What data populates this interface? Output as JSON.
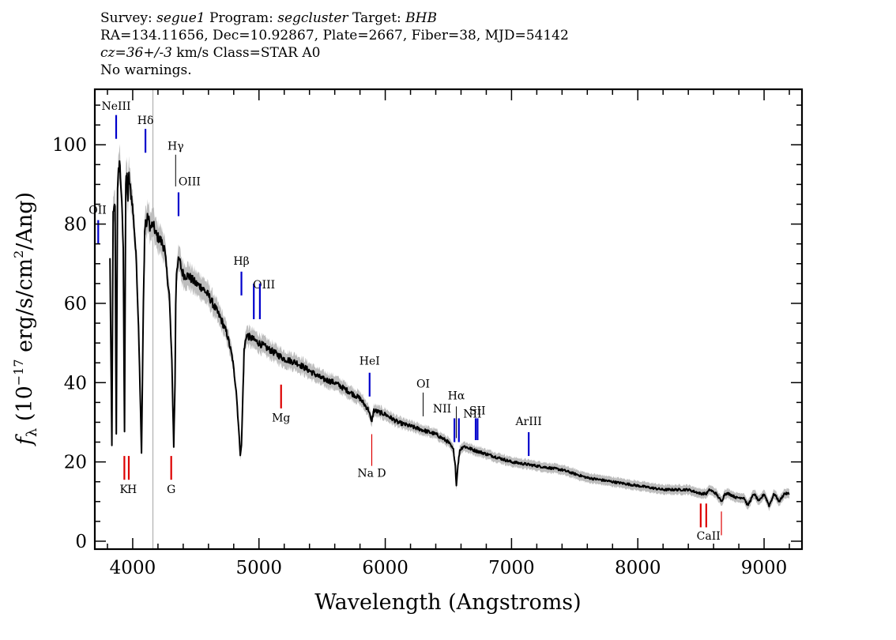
{
  "header": {
    "survey_label": "Survey:",
    "survey": "segue1",
    "program_label": "Program:",
    "program": "segcluster",
    "target_label": "Target:",
    "target": "BHB",
    "line2": "RA=134.11656, Dec=10.92867, Plate=2667, Fiber=38, MJD=54142",
    "cz_label": "cz=36+/-3",
    "cz_rest": "km/s Class=STAR A0",
    "warnings": "No warnings."
  },
  "chart_data": {
    "type": "line",
    "title": "",
    "xlabel": "Wavelength (Angstroms)",
    "ylabel": "f_λ (10^-17 erg/s/cm^2/Ang)",
    "xlim": [
      3700,
      9300
    ],
    "ylim": [
      -2,
      114
    ],
    "x_ticks": [
      4000,
      5000,
      6000,
      7000,
      8000,
      9000
    ],
    "y_ticks": [
      0,
      20,
      40,
      60,
      80,
      100
    ],
    "vertical_marker_x": 4160,
    "colors": {
      "spectrum": "#000000",
      "error_band": "#bdbdbd",
      "emission": "#0000cc",
      "absorption": "#dd0000",
      "marker": "#b0b0b0"
    },
    "spectrum": {
      "x": [
        3820,
        3835,
        3845,
        3860,
        3870,
        3880,
        3888,
        3896,
        3910,
        3925,
        3935,
        3945,
        3955,
        3962,
        3970,
        3980,
        3995,
        4010,
        4030,
        4050,
        4070,
        4085,
        4095,
        4102,
        4110,
        4120,
        4140,
        4160,
        4190,
        4220,
        4250,
        4270,
        4290,
        4310,
        4325,
        4335,
        4341,
        4347,
        4355,
        4370,
        4390,
        4410,
        4440,
        4470,
        4500,
        4550,
        4600,
        4650,
        4700,
        4750,
        4790,
        4820,
        4840,
        4852,
        4861,
        4870,
        4882,
        4900,
        4950,
        5000,
        5050,
        5100,
        5200,
        5300,
        5400,
        5500,
        5600,
        5700,
        5800,
        5870,
        5890,
        5910,
        6000,
        6100,
        6200,
        6300,
        6400,
        6500,
        6540,
        6555,
        6563,
        6572,
        6590,
        6620,
        6700,
        6800,
        6900,
        7000,
        7200,
        7400,
        7600,
        7800,
        8000,
        8200,
        8400,
        8498,
        8520,
        8542,
        8570,
        8620,
        8662,
        8690,
        8720,
        8780,
        8840,
        8870,
        8920,
        8960,
        9000,
        9040,
        9080,
        9120,
        9160,
        9200
      ],
      "flux": [
        71,
        24,
        82,
        85,
        27,
        88,
        93,
        96,
        88,
        74,
        28,
        90,
        92,
        86,
        92,
        89,
        86,
        80,
        70,
        50,
        22,
        60,
        78,
        81,
        80,
        82,
        79,
        80,
        77,
        76,
        74,
        68,
        62,
        45,
        24,
        40,
        60,
        68,
        70,
        71,
        68,
        67,
        67,
        66,
        65,
        64,
        62,
        59,
        56,
        52,
        46,
        38,
        28,
        22,
        24,
        34,
        48,
        52,
        51,
        50,
        49,
        48,
        46,
        45,
        43,
        41,
        40,
        38,
        36,
        33,
        30,
        33,
        32,
        30,
        29,
        28,
        27,
        25,
        23,
        19,
        14,
        18,
        23,
        24,
        23,
        22,
        21,
        20,
        19,
        18,
        16,
        15,
        14,
        13,
        13,
        12,
        12,
        12,
        13,
        12,
        10,
        12,
        12,
        11,
        11,
        9,
        12,
        10,
        12,
        9,
        12,
        10,
        12,
        12,
        11,
        12
      ]
    },
    "line_labels": [
      {
        "label": "NeIII",
        "x": 3869,
        "y_top": 107.5,
        "y_bot": 101.5,
        "color": "emission",
        "lx": 3869,
        "ly": 108.8,
        "anchor": "middle"
      },
      {
        "label": "OII",
        "x": 3727,
        "y_top": 81.0,
        "y_bot": 75.0,
        "color": "emission",
        "lx": 3722,
        "ly": 82.6,
        "anchor": "middle"
      },
      {
        "label": "Hδ",
        "x": 4101,
        "y_top": 104.0,
        "y_bot": 98.0,
        "color": "emission",
        "lx": 4101,
        "ly": 105.2,
        "anchor": "middle"
      },
      {
        "label": "Hγ",
        "x": 4340,
        "y_top": 97.5,
        "y_bot": 89.5,
        "color": "thin",
        "lx": 4340,
        "ly": 98.8,
        "anchor": "middle"
      },
      {
        "label": "OIII",
        "x": 4363,
        "y_top": 88.0,
        "y_bot": 82.0,
        "color": "emission",
        "lx": 4450,
        "ly": 89.8,
        "anchor": "middle"
      },
      {
        "label": "Hβ",
        "x": 4861,
        "y_top": 68.0,
        "y_bot": 62.0,
        "color": "emission",
        "lx": 4861,
        "ly": 69.8,
        "anchor": "middle"
      },
      {
        "label": "OIII",
        "x": 4959,
        "y_top": 65.0,
        "y_bot": 56.0,
        "color": "emission",
        "lx": 5040,
        "ly": 63.8,
        "anchor": "middle"
      },
      {
        "label": "OIII",
        "x": 5007,
        "y_top": 65.0,
        "y_bot": 56.0,
        "color": "emission",
        "lx": "",
        "ly": "",
        "anchor": "middle"
      },
      {
        "label": "HeI",
        "x": 5876,
        "y_top": 42.5,
        "y_bot": 36.5,
        "color": "emission",
        "lx": 5876,
        "ly": 44.5,
        "anchor": "middle"
      },
      {
        "label": "OI",
        "x": 6300,
        "y_top": 37.5,
        "y_bot": 31.5,
        "color": "thin",
        "lx": 6300,
        "ly": 38.8,
        "anchor": "middle"
      },
      {
        "label": "NII",
        "x": 6548,
        "y_top": 31.0,
        "y_bot": 25.0,
        "color": "emission",
        "lx": 6450,
        "ly": 32.5,
        "anchor": "middle"
      },
      {
        "label": "Hα",
        "x": 6563,
        "y_top": 34.0,
        "y_bot": 26.0,
        "color": "thin",
        "lx": 6563,
        "ly": 35.8,
        "anchor": "middle"
      },
      {
        "label": "NII",
        "x": 6583,
        "y_top": 31.0,
        "y_bot": 25.0,
        "color": "emission",
        "lx": 6690,
        "ly": 31.2,
        "anchor": "middle"
      },
      {
        "label": "SII",
        "x": 6716,
        "y_top": 31.0,
        "y_bot": 25.5,
        "color": "emission",
        "lx": 6730,
        "ly": 32.0,
        "anchor": "middle"
      },
      {
        "label": "SII",
        "x": 6731,
        "y_top": 31.0,
        "y_bot": 25.5,
        "color": "emission",
        "lx": "",
        "ly": "",
        "anchor": "middle"
      },
      {
        "label": "ArIII",
        "x": 7136,
        "y_top": 27.5,
        "y_bot": 21.5,
        "color": "emission",
        "lx": 7136,
        "ly": 29.3,
        "anchor": "middle"
      },
      {
        "label": "Mg",
        "x": 5175,
        "y_top": 39.5,
        "y_bot": 33.5,
        "color": "absorption",
        "lx": 5175,
        "ly": 30.2,
        "anchor": "middle"
      },
      {
        "label": "K",
        "x": 3934,
        "y_top": 21.5,
        "y_bot": 15.5,
        "color": "absorption",
        "lx": 3930,
        "ly": 12.2,
        "anchor": "middle"
      },
      {
        "label": "H",
        "x": 3969,
        "y_top": 21.5,
        "y_bot": 15.5,
        "color": "absorption",
        "lx": 3995,
        "ly": 12.2,
        "anchor": "middle"
      },
      {
        "label": "G",
        "x": 4305,
        "y_top": 21.5,
        "y_bot": 15.5,
        "color": "absorption",
        "lx": 4305,
        "ly": 12.2,
        "anchor": "middle"
      },
      {
        "label": "Na D",
        "x": 5893,
        "y_top": 27.0,
        "y_bot": 19.0,
        "color": "absorption_thin",
        "lx": 5893,
        "ly": 16.2,
        "anchor": "middle"
      },
      {
        "label": "CaII",
        "x": 8498,
        "y_top": 9.5,
        "y_bot": 3.5,
        "color": "absorption",
        "lx": 8560,
        "ly": 0.4,
        "anchor": "middle"
      },
      {
        "label": "CaII",
        "x": 8542,
        "y_top": 9.5,
        "y_bot": 3.5,
        "color": "absorption",
        "lx": "",
        "ly": "",
        "anchor": "middle"
      },
      {
        "label": "CaII",
        "x": 8662,
        "y_top": 7.5,
        "y_bot": 1.5,
        "color": "absorption_thin",
        "lx": "",
        "ly": "",
        "anchor": "middle"
      }
    ]
  }
}
